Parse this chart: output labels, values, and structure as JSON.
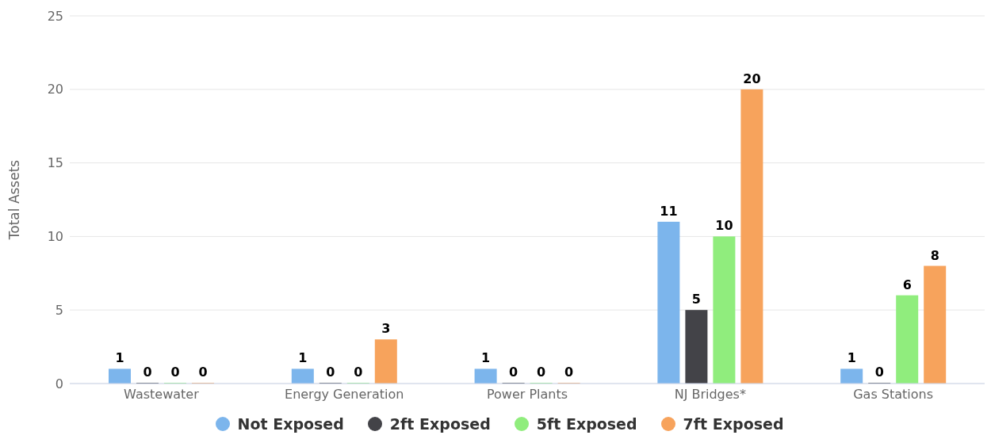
{
  "chart_data": {
    "type": "bar",
    "ylabel": "Total Assets",
    "categories": [
      "Wastewater",
      "Energy Generation",
      "Power Plants",
      "NJ Bridges*",
      "Gas Stations"
    ],
    "series": [
      {
        "name": "Not Exposed",
        "color": "#7cb5ec",
        "values": [
          1,
          1,
          1,
          11,
          1
        ]
      },
      {
        "name": "2ft Exposed",
        "color": "#434348",
        "values": [
          0,
          0,
          0,
          5,
          0
        ]
      },
      {
        "name": "5ft Exposed",
        "color": "#90ed7d",
        "values": [
          0,
          0,
          0,
          10,
          6
        ]
      },
      {
        "name": "7ft Exposed",
        "color": "#f7a35c",
        "values": [
          0,
          3,
          0,
          20,
          8
        ]
      }
    ],
    "ylim": [
      0,
      25
    ],
    "yticks": [
      0,
      5,
      10,
      15,
      20,
      25
    ],
    "grid": "y",
    "legend": "bottom",
    "data_labels": true
  }
}
